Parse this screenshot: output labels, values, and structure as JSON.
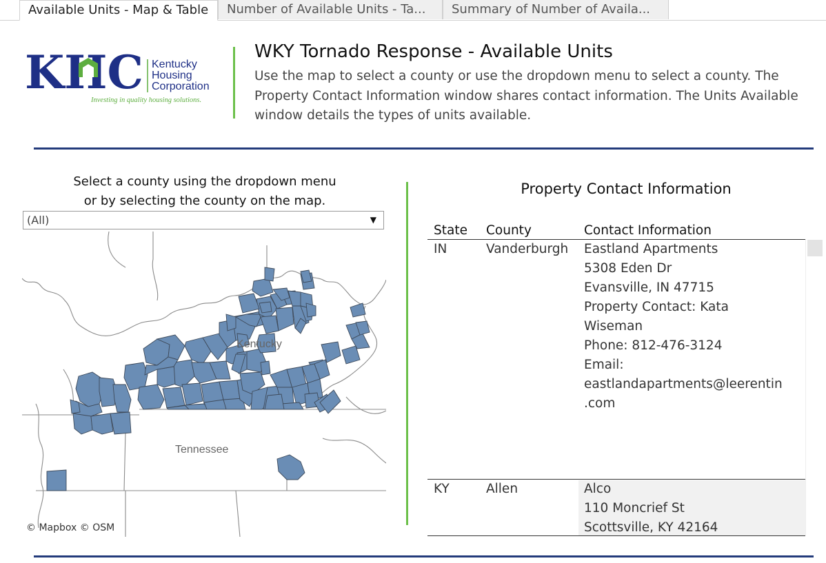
{
  "tabs": [
    {
      "label": "Available Units - Map & Table"
    },
    {
      "label": "Number of Available Units - Ta..."
    },
    {
      "label": "Summary of Number of Availa..."
    }
  ],
  "logo": {
    "letters": "KHC",
    "name_lines": [
      "Kentucky",
      "Housing",
      "Corporation"
    ],
    "tagline": "Investing in quality housing solutions."
  },
  "header": {
    "title": "WKY Tornado Response - Available Units",
    "description": "Use the map to select a county or use the dropdown menu to select a county. The Property Contact Information window shares contact information. The Units Available window details the types of units available."
  },
  "county_selector": {
    "label_line1": "Select a county using the dropdown menu",
    "label_line2": "or by selecting the county on the map.",
    "selected": "(All)"
  },
  "map": {
    "labels": {
      "kentucky": "Kentucky",
      "tennessee": "Tennessee"
    },
    "attribution": "© Mapbox  © OSM",
    "county_fill": "#6a8db5",
    "county_stroke": "#3e4a5a"
  },
  "contacts": {
    "title": "Property Contact Information",
    "headers": {
      "state": "State",
      "county": "County",
      "contact": "Contact Information"
    },
    "rows": [
      {
        "state": "IN",
        "county": "Vanderburgh",
        "lines": [
          "Eastland Apartments",
          "5308 Eden Dr",
          "Evansville, IN 47715",
          "Property Contact: Kata",
          "Wiseman",
          "Phone: 812-476-3124",
          "Email:",
          "eastlandapartments@leerentin",
          ".com"
        ]
      },
      {
        "state": "KY",
        "county": "Allen",
        "lines": [
          "Alco",
          "110 Moncrief St",
          "Scottsville, KY 42164"
        ]
      }
    ]
  },
  "colors": {
    "accent_green": "#6cc04a",
    "rule_navy": "#233b7b",
    "logo_blue": "#1e2f86",
    "logo_green": "#5dae3f"
  }
}
